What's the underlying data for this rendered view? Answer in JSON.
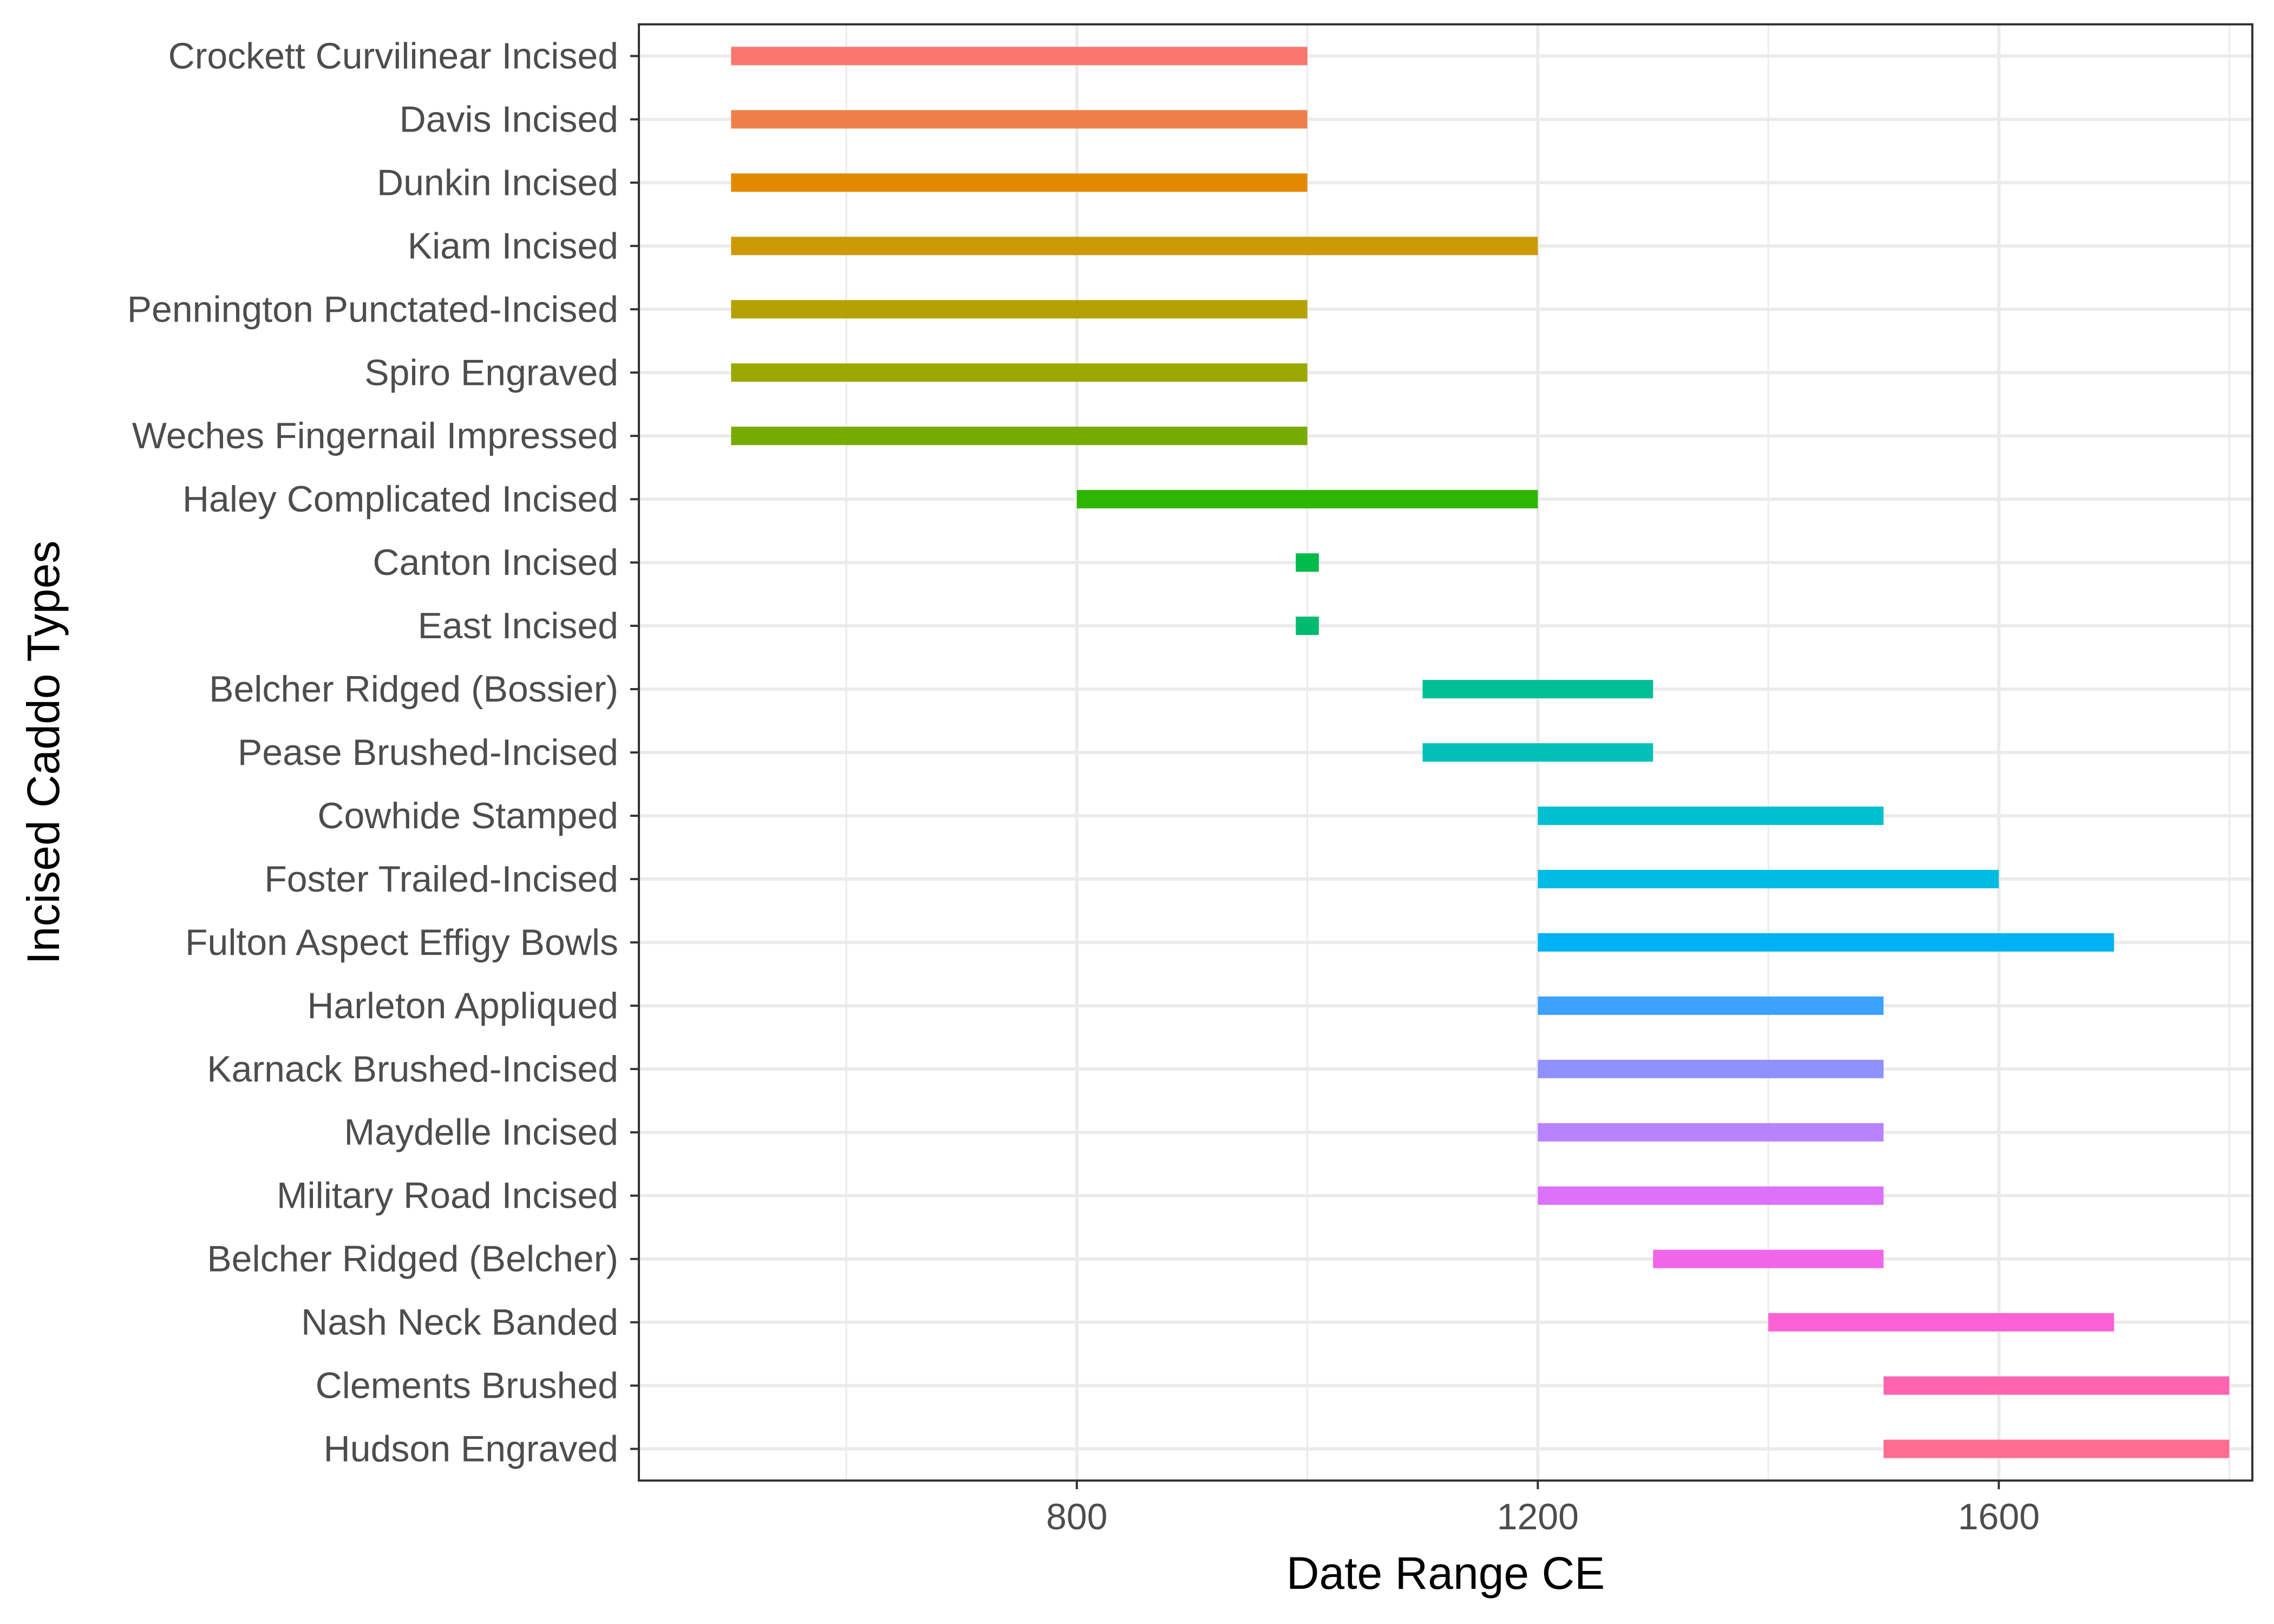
{
  "chart_data": {
    "type": "range-bar",
    "xlabel": "Date Range CE",
    "ylabel": "Incised Caddo Types",
    "xlim": [
      420,
      1820
    ],
    "xticks": [
      800,
      1200,
      1600
    ],
    "xtick_labels": [
      "800",
      "1200",
      "1600"
    ],
    "grid": true,
    "legend": "none",
    "series": [
      {
        "label": "Crockett Curvilinear Incised",
        "start": 500,
        "end": 1000,
        "color": "#F8766D"
      },
      {
        "label": "Davis Incised",
        "start": 500,
        "end": 1000,
        "color": "#EF7F49"
      },
      {
        "label": "Dunkin Incised",
        "start": 500,
        "end": 1000,
        "color": "#E38900"
      },
      {
        "label": "Kiam Incised",
        "start": 500,
        "end": 1200,
        "color": "#CC9A05"
      },
      {
        "label": "Pennington Punctated-Incised",
        "start": 500,
        "end": 1000,
        "color": "#B4A200"
      },
      {
        "label": "Spiro Engraved",
        "start": 500,
        "end": 1000,
        "color": "#9AA800"
      },
      {
        "label": "Weches Fingernail Impressed",
        "start": 500,
        "end": 1000,
        "color": "#76AC00"
      },
      {
        "label": "Haley Complicated Incised",
        "start": 800,
        "end": 1200,
        "color": "#2EB500"
      },
      {
        "label": "Canton Incised",
        "start": 990,
        "end": 1010,
        "color": "#00BA4A"
      },
      {
        "label": "East Incised",
        "start": 990,
        "end": 1010,
        "color": "#00BB6E"
      },
      {
        "label": "Belcher Ridged (Bossier)",
        "start": 1100,
        "end": 1300,
        "color": "#00BF96"
      },
      {
        "label": "Pease Brushed-Incised",
        "start": 1100,
        "end": 1300,
        "color": "#00C0B8"
      },
      {
        "label": "Cowhide Stamped",
        "start": 1200,
        "end": 1500,
        "color": "#00BFD1"
      },
      {
        "label": "Foster Trailed-Incised",
        "start": 1200,
        "end": 1600,
        "color": "#00BCE4"
      },
      {
        "label": "Fulton Aspect Effigy Bowls",
        "start": 1200,
        "end": 1700,
        "color": "#00B2F3"
      },
      {
        "label": "Harleton Appliqued",
        "start": 1200,
        "end": 1500,
        "color": "#3CA1FF"
      },
      {
        "label": "Karnack Brushed-Incised",
        "start": 1200,
        "end": 1500,
        "color": "#8F91FF"
      },
      {
        "label": "Maydelle Incised",
        "start": 1200,
        "end": 1500,
        "color": "#B983FF"
      },
      {
        "label": "Military Road Incised",
        "start": 1200,
        "end": 1500,
        "color": "#DC71FA"
      },
      {
        "label": "Belcher Ridged (Belcher)",
        "start": 1300,
        "end": 1500,
        "color": "#F066EA"
      },
      {
        "label": "Nash Neck Banded",
        "start": 1400,
        "end": 1700,
        "color": "#FC61D5"
      },
      {
        "label": "Clements Brushed",
        "start": 1500,
        "end": 1800,
        "color": "#FF64B0"
      },
      {
        "label": "Hudson Engraved",
        "start": 1500,
        "end": 1800,
        "color": "#FF6C91"
      }
    ]
  }
}
